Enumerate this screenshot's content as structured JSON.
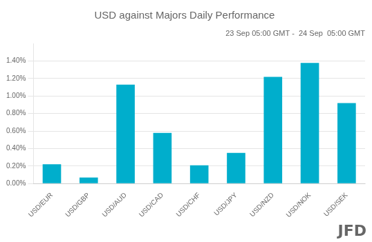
{
  "chart_data": {
    "type": "bar",
    "title": "USD against Majors Daily Performance",
    "subtitle": "23 Sep 05:00 GMT -  24 Sep  05:00 GMT",
    "categories": [
      "USD/EUR",
      "USD/GBP",
      "USD/AUD",
      "USD/CAD",
      "USD/CHF",
      "USD/JPY",
      "USD/NZD",
      "USD/NOK",
      "USD/SEK"
    ],
    "values": [
      0.0022,
      0.0007,
      0.0113,
      0.0058,
      0.0021,
      0.0035,
      0.0122,
      0.0138,
      0.0092
    ],
    "color": "#00aecc",
    "ylim": [
      0,
      0.016
    ],
    "yticks": [
      {
        "value": 0.0,
        "label": "0.00%"
      },
      {
        "value": 0.002,
        "label": "0.20%"
      },
      {
        "value": 0.004,
        "label": "0.40%"
      },
      {
        "value": 0.006,
        "label": "0.60%"
      },
      {
        "value": 0.008,
        "label": "0.80%"
      },
      {
        "value": 0.01,
        "label": "1.00%"
      },
      {
        "value": 0.012,
        "label": "1.20%"
      },
      {
        "value": 0.014,
        "label": "1.40%"
      }
    ],
    "grid": true,
    "annotations": [
      "JFD"
    ]
  }
}
